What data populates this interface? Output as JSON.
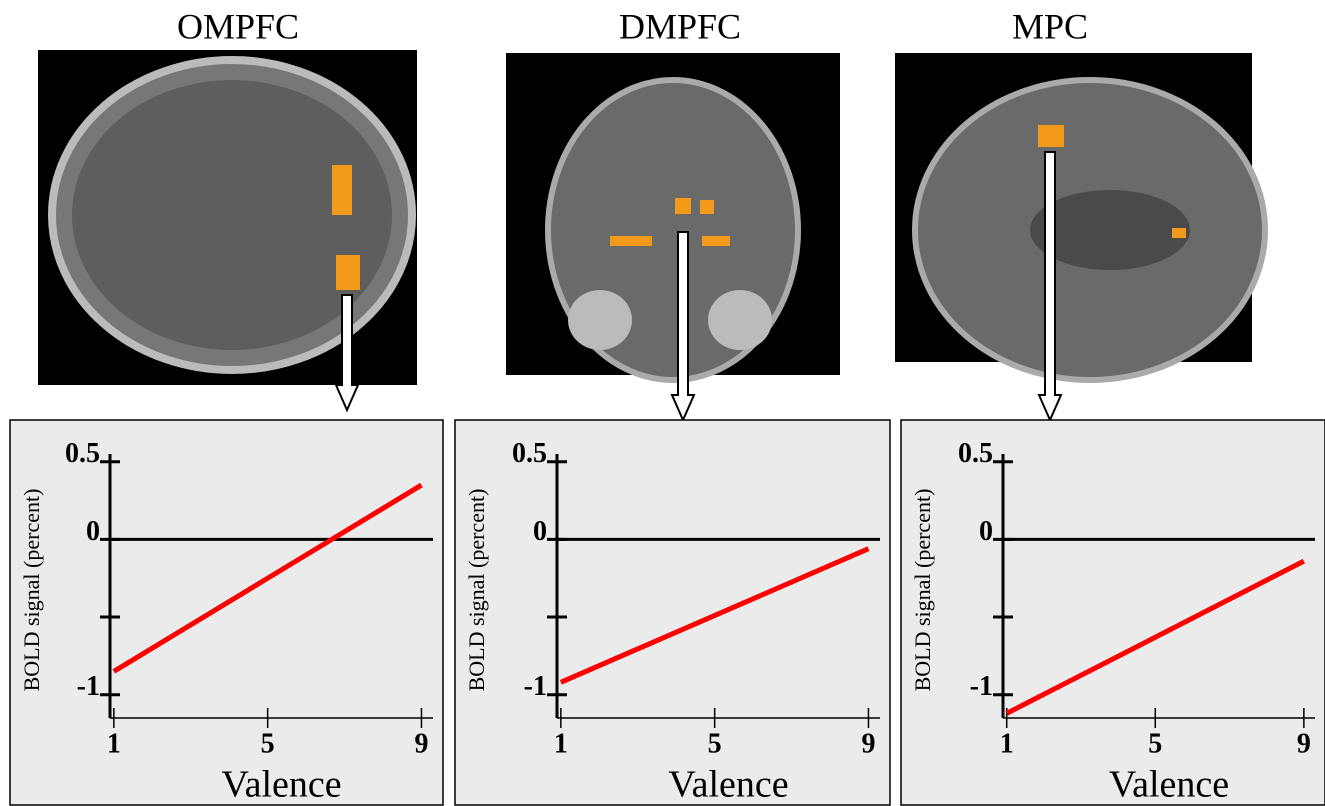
{
  "chart_data": [
    {
      "type": "line",
      "title": "OMPFC",
      "ylabel": "BOLD signal (percent)",
      "xlabel": "Valence",
      "x": [
        1,
        9
      ],
      "values": [
        -0.85,
        0.35
      ],
      "color": "#ff0000",
      "xlim": [
        0.9,
        9.3
      ],
      "xticks": [
        1,
        5,
        9
      ],
      "ylim": [
        -1.15,
        0.55
      ],
      "yticks": [
        0.5,
        0,
        -1
      ],
      "yminorticks": [
        -0.5
      ]
    },
    {
      "type": "line",
      "title": "DMPFC",
      "ylabel": "BOLD signal (percent)",
      "xlabel": "Valence",
      "x": [
        1,
        9
      ],
      "values": [
        -0.92,
        -0.06
      ],
      "color": "#ff0000",
      "xlim": [
        0.9,
        9.3
      ],
      "xticks": [
        1,
        5,
        9
      ],
      "ylim": [
        -1.15,
        0.55
      ],
      "yticks": [
        0.5,
        0,
        -1
      ],
      "yminorticks": [
        -0.5
      ]
    },
    {
      "type": "line",
      "title": "MPC",
      "ylabel": "BOLD signal (percent)",
      "xlabel": "Valence",
      "x": [
        1,
        9
      ],
      "values": [
        -1.12,
        -0.14
      ],
      "color": "#ff0000",
      "xlim": [
        0.9,
        9.3
      ],
      "xticks": [
        1,
        5,
        9
      ],
      "ylim": [
        -1.15,
        0.55
      ],
      "yticks": [
        0.5,
        0,
        -1
      ],
      "yminorticks": [
        -0.5
      ]
    }
  ]
}
